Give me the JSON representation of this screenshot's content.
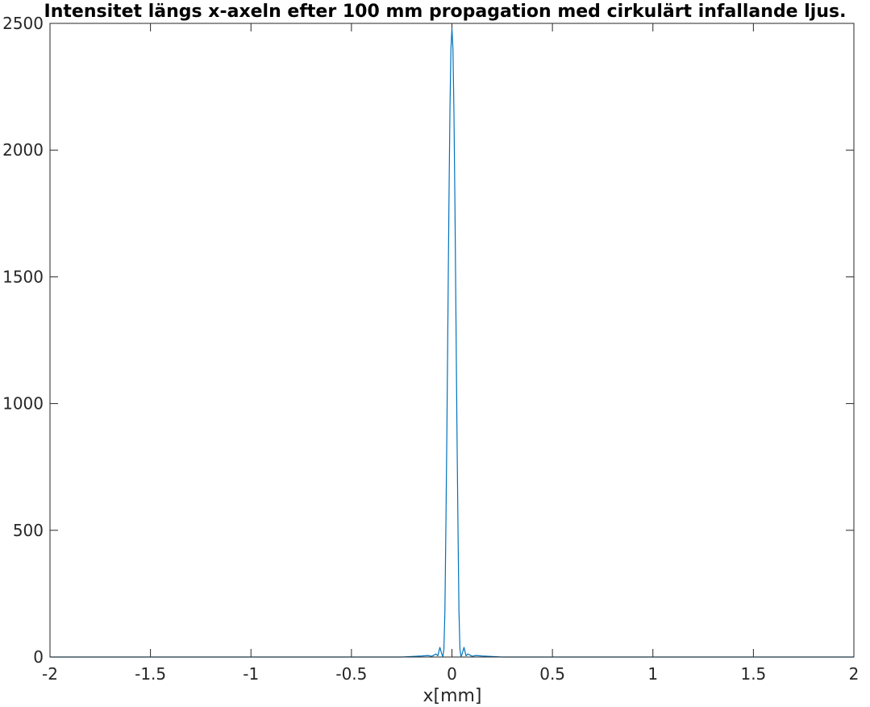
{
  "chart_data": {
    "type": "line",
    "title": "Intensitet längs x-axeln efter 100 mm propagation med cirkulärt infallande ljus.",
    "xlabel": "x[mm]",
    "ylabel": "",
    "xlim": [
      -2,
      2
    ],
    "ylim": [
      0,
      2500
    ],
    "x_ticks": [
      -2,
      -1.5,
      -1,
      -0.5,
      0,
      0.5,
      1,
      1.5,
      2
    ],
    "x_tick_labels": [
      "-2",
      "-1.5",
      "-1",
      "-0.5",
      "0",
      "0.5",
      "1",
      "1.5",
      "2"
    ],
    "y_ticks": [
      0,
      500,
      1000,
      1500,
      2000,
      2500
    ],
    "y_tick_labels": [
      "0",
      "500",
      "1000",
      "1500",
      "2000",
      "2500"
    ],
    "grid": false,
    "legend": "none",
    "series_color": "#0072BD",
    "series": [
      {
        "x": [
          -2,
          -0.25,
          -0.2,
          -0.15,
          -0.12,
          -0.1,
          -0.08,
          -0.07,
          -0.06,
          -0.05,
          -0.045,
          -0.04,
          -0.035,
          -0.03,
          -0.025,
          -0.02,
          -0.015,
          -0.01,
          -0.005,
          0,
          0.005,
          0.01,
          0.015,
          0.02,
          0.025,
          0.03,
          0.035,
          0.04,
          0.045,
          0.05,
          0.06,
          0.07,
          0.08,
          0.1,
          0.12,
          0.15,
          0.2,
          0.25,
          2
        ],
        "y": [
          0,
          0,
          2,
          4,
          6,
          3,
          12,
          5,
          38,
          10,
          2,
          30,
          180,
          520,
          900,
          1340,
          1780,
          2150,
          2400,
          2480,
          2400,
          2150,
          1780,
          1340,
          900,
          520,
          180,
          30,
          2,
          10,
          38,
          5,
          12,
          3,
          6,
          4,
          2,
          0,
          0
        ]
      }
    ]
  }
}
